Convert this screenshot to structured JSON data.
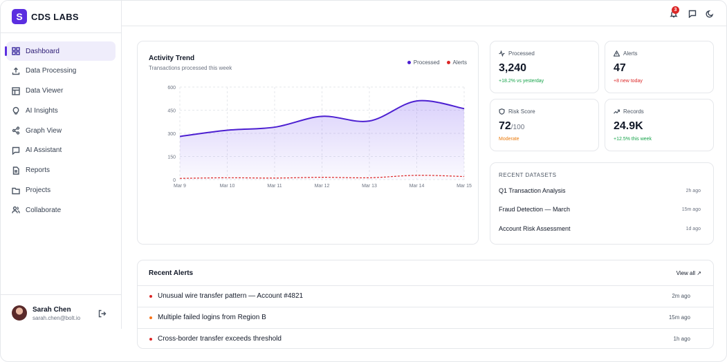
{
  "brand": {
    "logo_text": "S",
    "name": "CDS LABS"
  },
  "sidebar": {
    "items": [
      {
        "label": "Dashboard",
        "icon": "dashboard-icon",
        "active": true
      },
      {
        "label": "Data Processing",
        "icon": "upload-icon",
        "active": false
      },
      {
        "label": "Data Viewer",
        "icon": "table-icon",
        "active": false
      },
      {
        "label": "AI Insights",
        "icon": "lightbulb-icon",
        "active": false
      },
      {
        "label": "Graph View",
        "icon": "share-icon",
        "active": false
      },
      {
        "label": "AI Assistant",
        "icon": "chat-icon",
        "active": false
      },
      {
        "label": "Reports",
        "icon": "file-icon",
        "active": false
      },
      {
        "label": "Projects",
        "icon": "folder-icon",
        "active": false
      },
      {
        "label": "Collaborate",
        "icon": "users-icon",
        "active": false
      }
    ]
  },
  "user": {
    "name": "Sarah Chen",
    "email": "sarah.chen@bolt.io"
  },
  "topbar": {
    "notification_count": "3"
  },
  "activity": {
    "title": "Activity Trend",
    "subtitle": "Transactions processed this week",
    "legend": [
      {
        "label": "Processed",
        "color": "#4c1fd1"
      },
      {
        "label": "Alerts",
        "color": "#dc2626"
      }
    ]
  },
  "chart_data": {
    "type": "area",
    "x": [
      "Mar 9",
      "Mar 10",
      "Mar 11",
      "Mar 12",
      "Mar 13",
      "Mar 14",
      "Mar 15"
    ],
    "y_ticks": [
      0,
      150,
      300,
      450,
      600
    ],
    "ylim": [
      0,
      600
    ],
    "grid": true,
    "series": [
      {
        "name": "Processed",
        "values": [
          280,
          320,
          340,
          410,
          380,
          510,
          460
        ],
        "color": "#4c1fd1"
      },
      {
        "name": "Alerts",
        "values": [
          8,
          12,
          10,
          15,
          12,
          28,
          20
        ],
        "color": "#dc2626"
      }
    ]
  },
  "stats": [
    {
      "label": "Processed",
      "icon": "activity-icon",
      "value": "3,240",
      "unit": "",
      "note": "+18.2% vs yesterday",
      "note_color": "green"
    },
    {
      "label": "Alerts",
      "icon": "alert-triangle-icon",
      "value": "47",
      "unit": "",
      "note": "+8 new today",
      "note_color": "red"
    },
    {
      "label": "Risk Score",
      "icon": "shield-icon",
      "value": "72",
      "unit": "/100",
      "note": "Moderate",
      "note_color": "orange"
    },
    {
      "label": "Records",
      "icon": "trending-up-icon",
      "value": "24.9K",
      "unit": "",
      "note": "+12.5% this week",
      "note_color": "green"
    }
  ],
  "datasets": {
    "heading": "RECENT DATASETS",
    "items": [
      {
        "name": "Q1 Transaction Analysis",
        "time": "2h ago"
      },
      {
        "name": "Fraud Detection — March",
        "time": "15m ago"
      },
      {
        "name": "Account Risk Assessment",
        "time": "1d ago"
      }
    ]
  },
  "alerts": {
    "title": "Recent Alerts",
    "view_all": "View all ↗",
    "items": [
      {
        "text": "Unusual wire transfer pattern — Account #4821",
        "time": "2m ago",
        "color": "#dc2626"
      },
      {
        "text": "Multiple failed logins from Region B",
        "time": "15m ago",
        "color": "#f97316"
      },
      {
        "text": "Cross-border transfer exceeds threshold",
        "time": "1h ago",
        "color": "#dc2626"
      }
    ]
  }
}
